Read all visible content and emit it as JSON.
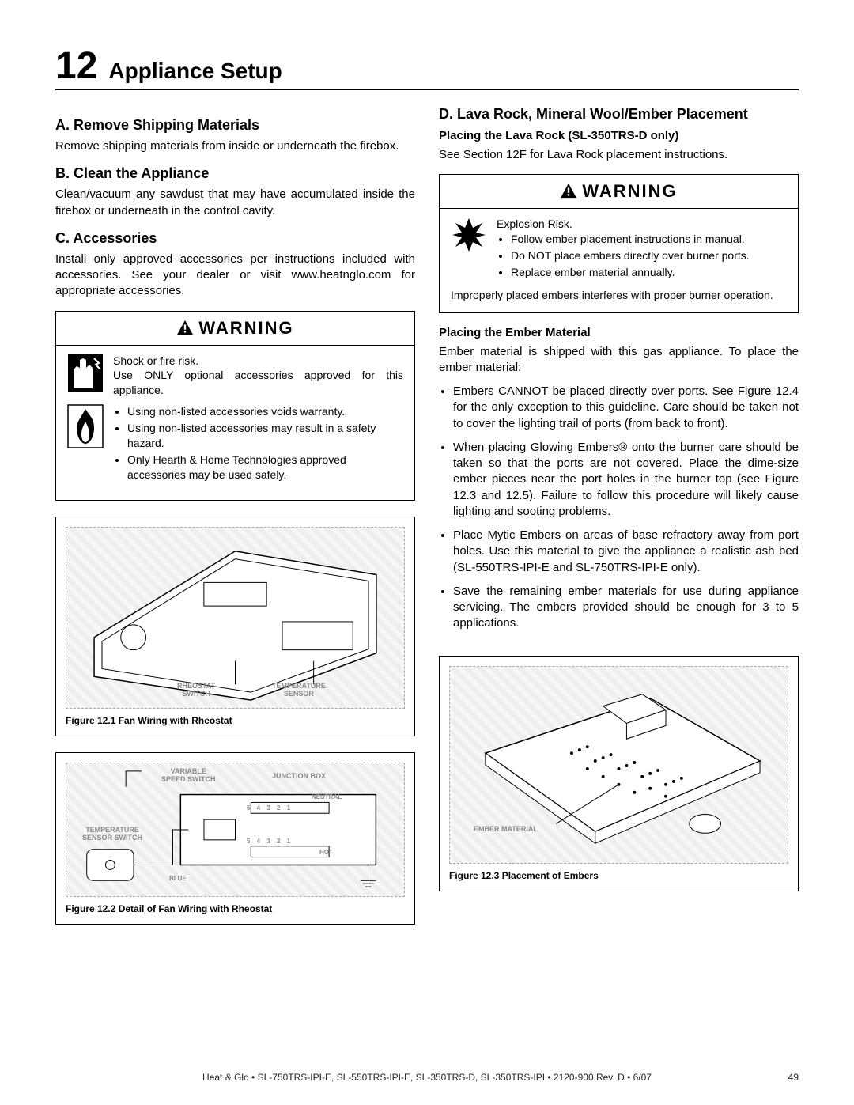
{
  "section": {
    "number": "12",
    "title": "Appliance Setup"
  },
  "left": {
    "a_head": "A.  Remove Shipping Materials",
    "a_text": "Remove shipping materials from inside or underneath the firebox.",
    "b_head": "B.  Clean the Appliance",
    "b_text": "Clean/vacuum any sawdust that may have accumulated inside the firebox or underneath in the control cavity.",
    "c_head": "C.  Accessories",
    "c_text": "Install  only approved accessories per instructions included with accessories. See your dealer or visit www.heatnglo.com for appropriate accessories.",
    "warn1": {
      "title": "WARNING",
      "line1": "Shock or fire risk.",
      "line2": "Use ONLY optional accessories approved for this appliance.",
      "bullets": [
        "Using non-listed accessories voids warranty.",
        "Using non-listed accessories may result in a safety hazard.",
        "Only Hearth & Home Technologies approved accessories may be used safely."
      ]
    },
    "fig1": {
      "labels": {
        "rheostat": "RHEOSTAT\nSWITCH",
        "temp": "TEMPERATURE\nSENSOR"
      },
      "caption": "Figure 12.1  Fan Wiring with Rheostat"
    },
    "fig2": {
      "labels": {
        "vss": "VARIABLE\nSPEED SWITCH",
        "jbox": "JUNCTION BOX",
        "tss": "TEMPERATURE\nSENSOR SWITCH",
        "neutral": "NEUTRAL",
        "hot": "HOT",
        "blue": "BLUE",
        "nums": "5   4   3   2   1"
      },
      "caption": "Figure 12.2  Detail of Fan Wiring with Rheostat"
    }
  },
  "right": {
    "d_head": "D.  Lava Rock, Mineral Wool/Ember Placement",
    "d_sub": "Placing the Lava Rock (SL-350TRS-D only)",
    "d_text": "See Section 12F for Lava Rock placement instructions.",
    "warn2": {
      "title": "WARNING",
      "line1": "Explosion  Risk.",
      "bullets": [
        "Follow ember placement instructions in manual.",
        "Do NOT place embers directly over burner ports.",
        "Replace ember material annually."
      ],
      "tail": "Improperly placed embers interferes with proper burner operation."
    },
    "ember_head": "Placing the Ember Material",
    "ember_intro": "Ember material is shipped with this gas appliance. To place the ember material:",
    "ember_bullets": [
      "Embers CANNOT be placed directly over ports. See Figure 12.4 for the only exception to this guideline.  Care should be taken not to cover the lighting trail of ports (from back to front).",
      "When placing Glowing Embers® onto the burner care should be taken so that the ports are not covered. Place the dime-size ember pieces near the port holes in the burner top (see Figure 12.3 and 12.5). Failure to follow this procedure will likely cause lighting and sooting problems.",
      "Place Mytic Embers on areas of base refractory away from port holes. Use this material to give the appliance a realistic ash bed (SL-550TRS-IPI-E and SL-750TRS-IPI-E only).",
      "Save the remaining ember materials for use during appliance servicing. The embers provided should be enough for 3 to 5 applications."
    ],
    "fig3": {
      "label": "EMBER MATERIAL",
      "caption": "Figure 12.3  Placement of Embers"
    }
  },
  "footer": {
    "center": "Heat & Glo  •  SL-750TRS-IPI-E, SL-550TRS-IPI-E, SL-350TRS-D, SL-350TRS-IPI  •  2120-900 Rev. D  •  6/07",
    "page": "49"
  }
}
